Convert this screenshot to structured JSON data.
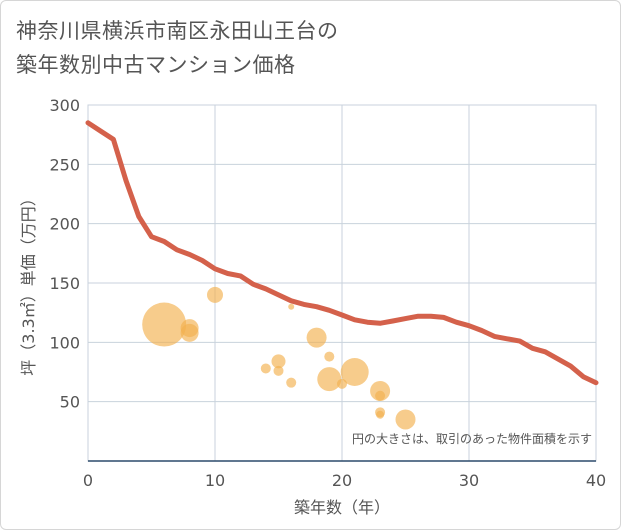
{
  "chart_data": {
    "type": "scatter",
    "title_line1": "神奈川県横浜市南区永田山王台の",
    "title_line2": "築年数別中古マンション価格",
    "xlabel": "築年数（年）",
    "ylabel": "坪（3.3㎡）単価（万円）",
    "note": "円の大きさは、取引のあった物件面積を示す",
    "xlim": [
      0,
      40
    ],
    "ylim": [
      0,
      300
    ],
    "x_ticks": [
      0,
      10,
      20,
      30,
      40
    ],
    "y_ticks": [
      50,
      100,
      150,
      200,
      250,
      300
    ],
    "x_tick_labels": [
      "0",
      "10",
      "20",
      "30",
      "40"
    ],
    "y_tick_labels": [
      "50",
      "100",
      "150",
      "200",
      "250",
      "300"
    ],
    "line_color": "#d4614b",
    "bubble_color": "#f2b04e",
    "trend_line": {
      "x": [
        0,
        1,
        2,
        3,
        4,
        5,
        6,
        7,
        8,
        9,
        10,
        11,
        12,
        13,
        14,
        15,
        16,
        17,
        18,
        19,
        20,
        21,
        22,
        23,
        24,
        25,
        26,
        27,
        28,
        29,
        30,
        31,
        32,
        33,
        34,
        35,
        36,
        37,
        38,
        39,
        40
      ],
      "y": [
        285,
        278,
        271,
        236,
        206,
        189,
        185,
        178,
        174,
        169,
        162,
        158,
        156,
        149,
        145,
        140,
        135,
        132,
        130,
        127,
        123,
        119,
        117,
        116,
        118,
        120,
        122,
        122,
        121,
        117,
        114,
        110,
        105,
        103,
        101,
        95,
        92,
        86,
        80,
        71,
        66
      ]
    },
    "bubbles": [
      {
        "x": 6,
        "y": 115,
        "size": 22
      },
      {
        "x": 8,
        "y": 112,
        "size": 9
      },
      {
        "x": 8,
        "y": 108,
        "size": 9
      },
      {
        "x": 10,
        "y": 140,
        "size": 8
      },
      {
        "x": 14,
        "y": 78,
        "size": 5
      },
      {
        "x": 15,
        "y": 84,
        "size": 7
      },
      {
        "x": 15,
        "y": 76,
        "size": 5
      },
      {
        "x": 16,
        "y": 66,
        "size": 5
      },
      {
        "x": 16,
        "y": 130,
        "size": 3
      },
      {
        "x": 18,
        "y": 104,
        "size": 10
      },
      {
        "x": 19,
        "y": 88,
        "size": 5
      },
      {
        "x": 19,
        "y": 69,
        "size": 12
      },
      {
        "x": 20,
        "y": 65,
        "size": 5
      },
      {
        "x": 21,
        "y": 75,
        "size": 14
      },
      {
        "x": 23,
        "y": 59,
        "size": 10
      },
      {
        "x": 23,
        "y": 55,
        "size": 5
      },
      {
        "x": 23,
        "y": 41,
        "size": 5
      },
      {
        "x": 23,
        "y": 39,
        "size": 4
      },
      {
        "x": 25,
        "y": 35,
        "size": 10
      }
    ]
  }
}
